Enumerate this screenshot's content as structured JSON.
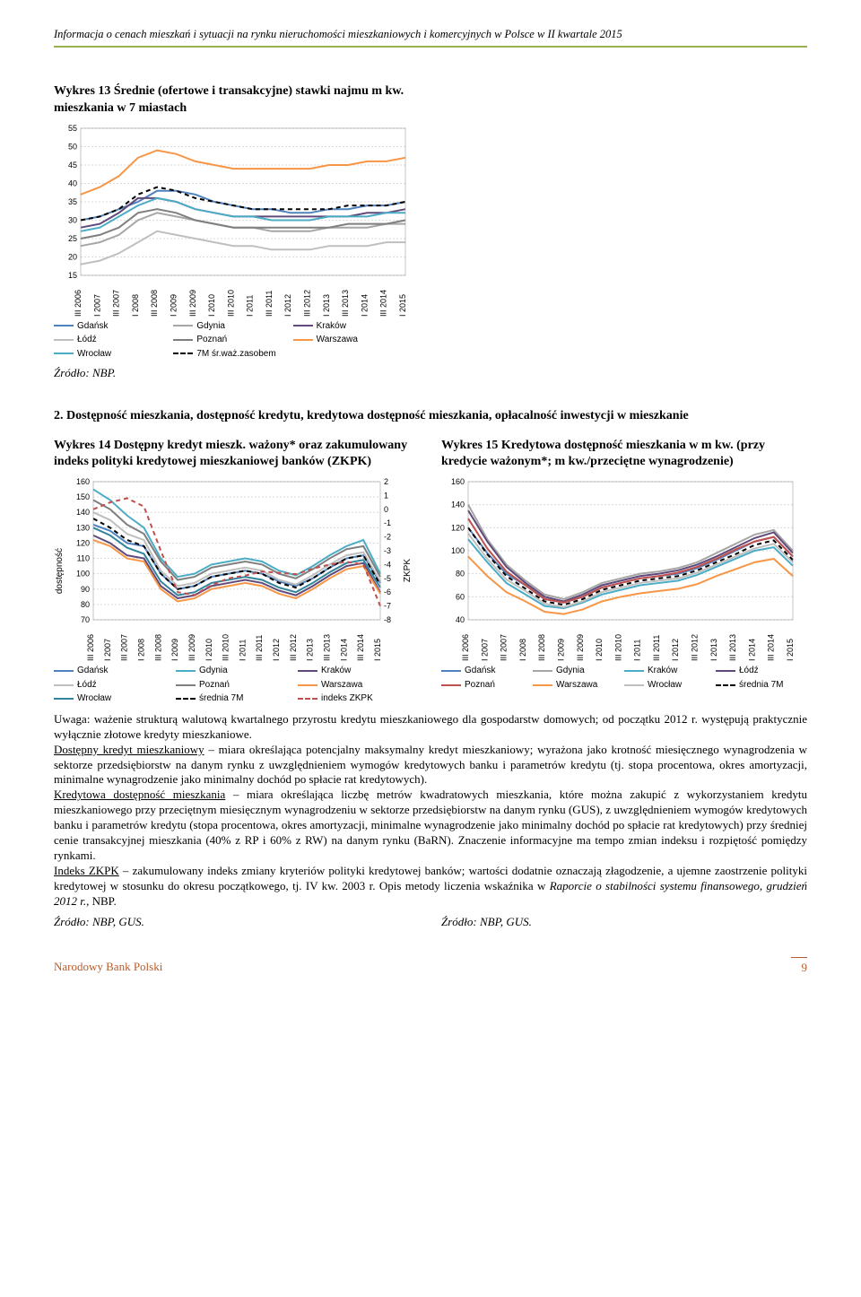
{
  "header": {
    "title": "Informacja o cenach mieszkań i sytuacji na rynku nieruchomości mieszkaniowych i komercyjnych w Polsce w II kwartale 2015"
  },
  "chart13": {
    "title": "Wykres 13 Średnie (ofertowe i transakcyjne) stawki najmu m kw. mieszkania w 7 miastach",
    "ylim": [
      15,
      55
    ],
    "ytick_step": 5,
    "xlabels": [
      "III 2006",
      "I 2007",
      "III 2007",
      "I 2008",
      "III 2008",
      "I 2009",
      "III 2009",
      "I 2010",
      "III 2010",
      "I 2011",
      "III 2011",
      "I 2012",
      "III 2012",
      "I 2013",
      "III 2013",
      "I 2014",
      "III 2014",
      "I 2015"
    ],
    "grid_color": "#d9d9d9",
    "series": [
      {
        "name": "Gdańsk",
        "color": "#4f81bd",
        "dash": "",
        "data": [
          30,
          31,
          33,
          35,
          38,
          38,
          37,
          35,
          34,
          33,
          33,
          32,
          32,
          33,
          33,
          34,
          34,
          35
        ]
      },
      {
        "name": "Gdynia",
        "color": "#a6a6a6",
        "dash": "",
        "data": [
          23,
          24,
          26,
          30,
          32,
          31,
          30,
          29,
          28,
          28,
          27,
          27,
          27,
          28,
          28,
          28,
          29,
          29
        ]
      },
      {
        "name": "Kraków",
        "color": "#604a7b",
        "dash": "",
        "data": [
          28,
          29,
          32,
          36,
          36,
          35,
          33,
          32,
          31,
          31,
          31,
          31,
          31,
          31,
          31,
          32,
          32,
          33
        ]
      },
      {
        "name": "Łódź",
        "color": "#bfbfbf",
        "dash": "",
        "data": [
          18,
          19,
          21,
          24,
          27,
          26,
          25,
          24,
          23,
          23,
          22,
          22,
          22,
          23,
          23,
          23,
          24,
          24
        ]
      },
      {
        "name": "Poznań",
        "color": "#7f7f7f",
        "dash": "",
        "data": [
          25,
          26,
          28,
          32,
          33,
          32,
          30,
          29,
          28,
          28,
          28,
          28,
          28,
          28,
          29,
          29,
          29,
          30
        ]
      },
      {
        "name": "Warszawa",
        "color": "#f79646",
        "dash": "",
        "data": [
          37,
          39,
          42,
          47,
          49,
          48,
          46,
          45,
          44,
          44,
          44,
          44,
          44,
          45,
          45,
          46,
          46,
          47
        ]
      },
      {
        "name": "Wrocław",
        "color": "#4bacc6",
        "dash": "",
        "data": [
          27,
          28,
          31,
          34,
          36,
          35,
          33,
          32,
          31,
          31,
          30,
          30,
          30,
          31,
          31,
          31,
          32,
          32
        ]
      },
      {
        "name": "7M śr.waż.zasobem",
        "color": "#000000",
        "dash": "5,4",
        "data": [
          30,
          31,
          33,
          37,
          39,
          38,
          36,
          35,
          34,
          33,
          33,
          33,
          33,
          33,
          34,
          34,
          34,
          35
        ]
      }
    ],
    "legend_cols": [
      [
        {
          "label": "Gdańsk",
          "color": "#4f81bd"
        },
        {
          "label": "Łódź",
          "color": "#bfbfbf"
        },
        {
          "label": "Wrocław",
          "color": "#4bacc6"
        }
      ],
      [
        {
          "label": "Gdynia",
          "color": "#a6a6a6"
        },
        {
          "label": "Poznań",
          "color": "#7f7f7f"
        },
        {
          "label": "7M śr.waż.zasobem",
          "color": "#000000",
          "dash": true
        }
      ],
      [
        {
          "label": "Kraków",
          "color": "#604a7b"
        },
        {
          "label": "Warszawa",
          "color": "#f79646"
        }
      ]
    ],
    "source": "Źródło: NBP."
  },
  "section2_heading": "2.  Dostępność mieszkania, dostępność kredytu, kredytowa dostępność mieszkania, opłacalność inwestycji w mieszkanie",
  "chart14": {
    "title": "Wykres 14 Dostępny kredyt mieszk. ważony* oraz zakumulowany indeks polityki kredytowej mieszkaniowej banków (ZKPK)",
    "ylabel_left": "dostępność",
    "ylim_left": [
      70,
      160
    ],
    "ytick_left": 10,
    "ylabel_right": "ZKPK",
    "ylim_right": [
      -8,
      2
    ],
    "ytick_right": 1,
    "xlabels": [
      "III 2006",
      "I 2007",
      "III 2007",
      "I 2008",
      "III 2008",
      "I 2009",
      "III 2009",
      "I 2010",
      "III 2010",
      "I 2011",
      "III 2011",
      "I 2012",
      "III 2012",
      "I 2013",
      "III 2013",
      "I 2014",
      "III 2014",
      "I 2015"
    ],
    "grid_color": "#d9d9d9",
    "series_left": [
      {
        "name": "Gdańsk",
        "color": "#4f81bd",
        "dash": "",
        "data": [
          132,
          128,
          120,
          118,
          100,
          90,
          92,
          98,
          100,
          102,
          100,
          95,
          92,
          97,
          104,
          110,
          112,
          94
        ]
      },
      {
        "name": "Gdynia",
        "color": "#4bacc6",
        "dash": "",
        "data": [
          155,
          148,
          138,
          130,
          110,
          98,
          100,
          106,
          108,
          110,
          108,
          102,
          99,
          105,
          112,
          118,
          122,
          100
        ]
      },
      {
        "name": "Kraków",
        "color": "#604a7b",
        "dash": "",
        "data": [
          125,
          120,
          112,
          110,
          92,
          84,
          86,
          92,
          94,
          96,
          94,
          89,
          86,
          92,
          99,
          105,
          107,
          88
        ]
      },
      {
        "name": "Łódź",
        "color": "#bfbfbf",
        "dash": "",
        "data": [
          140,
          135,
          126,
          122,
          102,
          92,
          94,
          100,
          102,
          104,
          102,
          96,
          93,
          99,
          106,
          112,
          114,
          95
        ]
      },
      {
        "name": "Poznań",
        "color": "#7f7f7f",
        "dash": "",
        "data": [
          148,
          142,
          132,
          126,
          108,
          96,
          98,
          104,
          106,
          108,
          106,
          100,
          97,
          103,
          110,
          116,
          118,
          98
        ]
      },
      {
        "name": "Warszawa",
        "color": "#f79646",
        "dash": "",
        "data": [
          122,
          118,
          110,
          108,
          90,
          82,
          84,
          90,
          92,
          94,
          92,
          87,
          84,
          90,
          97,
          103,
          105,
          87
        ]
      },
      {
        "name": "Wrocław",
        "color": "#31859c",
        "dash": "",
        "data": [
          130,
          125,
          117,
          113,
          95,
          86,
          88,
          94,
          96,
          98,
          96,
          91,
          88,
          94,
          101,
          107,
          109,
          91
        ]
      },
      {
        "name": "średnia 7M",
        "color": "#000000",
        "dash": "5,4",
        "data": [
          136,
          130,
          122,
          118,
          100,
          90,
          92,
          98,
          100,
          102,
          100,
          94,
          91,
          97,
          104,
          110,
          112,
          93
        ]
      }
    ],
    "series_right": [
      {
        "name": "indeks ZKPK",
        "color": "#c0504d",
        "dash": "5,4",
        "data": [
          0,
          0.5,
          0.8,
          0.2,
          -3,
          -6,
          -6.2,
          -5.5,
          -5,
          -4.8,
          -4.5,
          -4.6,
          -4.7,
          -4.3,
          -4,
          -3.8,
          -4,
          -7
        ]
      }
    ],
    "legend_cols": [
      [
        {
          "label": "Gdańsk",
          "color": "#4f81bd"
        },
        {
          "label": "Łódź",
          "color": "#bfbfbf"
        },
        {
          "label": "Wrocław",
          "color": "#31859c"
        }
      ],
      [
        {
          "label": "Gdynia",
          "color": "#4bacc6"
        },
        {
          "label": "Poznań",
          "color": "#7f7f7f"
        },
        {
          "label": "średnia 7M",
          "color": "#000000",
          "dash": true
        }
      ],
      [
        {
          "label": "Kraków",
          "color": "#604a7b"
        },
        {
          "label": "Warszawa",
          "color": "#f79646"
        },
        {
          "label": "indeks ZKPK",
          "color": "#c0504d",
          "dash": true
        }
      ]
    ]
  },
  "chart15": {
    "title": "Wykres 15 Kredytowa dostępność mieszkania w m kw. (przy kredycie ważonym*; m kw./przeciętne wynagrodzenie)",
    "ylim": [
      40,
      160
    ],
    "ytick_step": 20,
    "xlabels": [
      "III 2006",
      "I 2007",
      "III 2007",
      "I 2008",
      "III 2008",
      "I 2009",
      "III 2009",
      "I 2010",
      "III 2010",
      "I 2011",
      "III 2011",
      "I 2012",
      "III 2012",
      "I 2013",
      "III 2013",
      "I 2014",
      "III 2014",
      "I 2015"
    ],
    "grid_color": "#d9d9d9",
    "series": [
      {
        "name": "Gdańsk",
        "color": "#4f81bd",
        "dash": "",
        "data": [
          120,
          98,
          80,
          70,
          58,
          55,
          60,
          68,
          72,
          76,
          78,
          80,
          85,
          92,
          100,
          108,
          112,
          95
        ]
      },
      {
        "name": "Gdynia",
        "color": "#a6a6a6",
        "dash": "",
        "data": [
          140,
          110,
          88,
          74,
          62,
          58,
          64,
          72,
          76,
          80,
          82,
          85,
          90,
          98,
          106,
          114,
          118,
          100
        ]
      },
      {
        "name": "Kraków",
        "color": "#4bacc6",
        "dash": "",
        "data": [
          110,
          90,
          72,
          62,
          52,
          50,
          55,
          62,
          66,
          70,
          72,
          74,
          79,
          86,
          93,
          100,
          103,
          87
        ]
      },
      {
        "name": "Łódź",
        "color": "#604a7b",
        "dash": "",
        "data": [
          135,
          108,
          86,
          72,
          60,
          56,
          62,
          70,
          74,
          78,
          80,
          83,
          88,
          95,
          103,
          111,
          116,
          98
        ]
      },
      {
        "name": "Poznań",
        "color": "#c0504d",
        "dash": "",
        "data": [
          128,
          102,
          82,
          70,
          58,
          55,
          60,
          68,
          72,
          76,
          78,
          81,
          86,
          93,
          101,
          108,
          112,
          95
        ]
      },
      {
        "name": "Warszawa",
        "color": "#f79646",
        "dash": "",
        "data": [
          95,
          78,
          64,
          56,
          47,
          45,
          49,
          56,
          60,
          63,
          65,
          67,
          71,
          78,
          84,
          90,
          93,
          78
        ]
      },
      {
        "name": "Wrocław",
        "color": "#bfbfbf",
        "dash": "",
        "data": [
          115,
          93,
          75,
          65,
          54,
          51,
          56,
          64,
          68,
          72,
          74,
          76,
          81,
          88,
          95,
          102,
          106,
          90
        ]
      },
      {
        "name": "średnia 7M",
        "color": "#000000",
        "dash": "5,4",
        "data": [
          120,
          97,
          78,
          67,
          56,
          53,
          58,
          66,
          70,
          74,
          76,
          78,
          83,
          90,
          97,
          105,
          109,
          92
        ]
      }
    ],
    "legend_cols": [
      {
        "label": "Gdańsk",
        "color": "#4f81bd"
      },
      {
        "label": "Gdynia",
        "color": "#a6a6a6"
      },
      {
        "label": "Kraków",
        "color": "#4bacc6"
      },
      {
        "label": "Łódź",
        "color": "#604a7b"
      },
      {
        "label": "Poznań",
        "color": "#c0504d"
      },
      {
        "label": "Warszawa",
        "color": "#f79646"
      },
      {
        "label": "Wrocław",
        "color": "#bfbfbf"
      },
      {
        "label": "średnia 7M",
        "color": "#000000",
        "dash": true
      }
    ]
  },
  "body": {
    "p1": "Uwaga: ważenie strukturą walutową kwartalnego przyrostu kredytu mieszkaniowego dla gospodarstw domowych; od początku 2012 r. występują praktycznie wyłącznie złotowe kredyty mieszkaniowe.",
    "p2_u": "Dostępny kredyt mieszkaniowy",
    "p2": " – miara określająca potencjalny maksymalny kredyt mieszkaniowy; wyrażona jako krotność miesięcznego wynagrodzenia w sektorze przedsiębiorstw na danym rynku z uwzględnieniem wymogów kredytowych banku i parametrów kredytu (tj. stopa procentowa, okres amortyzacji, minimalne wynagrodzenie jako minimalny dochód po spłacie rat kredytowych).",
    "p3_u": "Kredytowa dostępność mieszkania",
    "p3": " – miara określająca liczbę metrów kwadratowych mieszkania, które można zakupić z wykorzystaniem kredytu mieszkaniowego przy przeciętnym miesięcznym wynagrodzeniu w sektorze przedsiębiorstw na danym rynku (GUS), z uwzględnieniem wymogów kredytowych banku i parametrów kredytu (stopa procentowa, okres amortyzacji, minimalne wynagrodzenie jako minimalny dochód po spłacie rat kredytowych) przy średniej cenie transakcyjnej mieszkania (40% z RP i 60% z RW) na danym rynku (BaRN). Znaczenie informacyjne ma tempo zmian indeksu i rozpiętość pomiędzy rynkami.",
    "p4_u": "Indeks ZKPK",
    "p4a": " – zakumulowany indeks zmiany kryteriów polityki kredytowej banków; wartości dodatnie oznaczają złagodzenie, a ujemne zaostrzenie polityki kredytowej w stosunku do okresu początkowego, tj. IV kw. 2003 r. Opis metody liczenia wskaźnika w ",
    "p4_i": "Raporcie o stabilności systemu finansowego, grudzień 2012 r.",
    "p4b": ", NBP.",
    "src_left": "Źródło: NBP, GUS.",
    "src_right": "Źródło: NBP, GUS."
  },
  "footer": {
    "left": "Narodowy Bank Polski",
    "pg": "9"
  }
}
